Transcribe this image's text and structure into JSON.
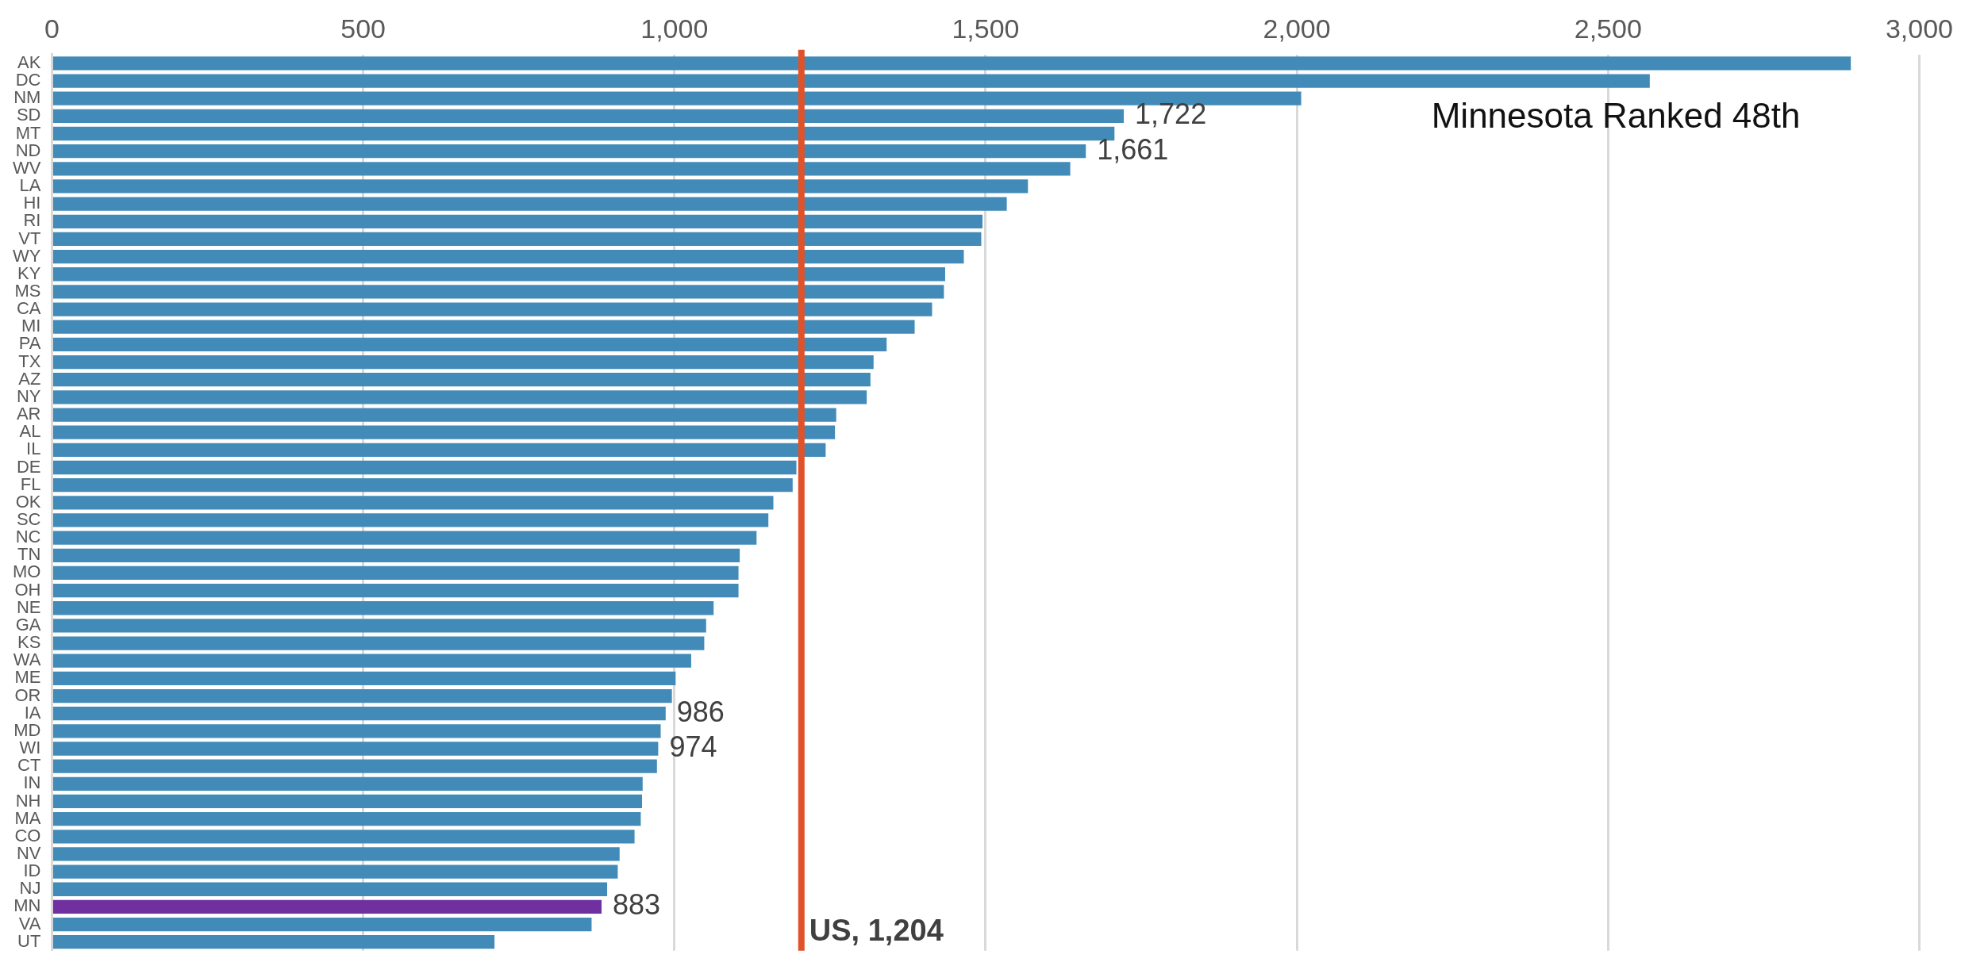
{
  "chart_data": {
    "type": "bar",
    "orientation": "horizontal",
    "categories": [
      "AK",
      "DC",
      "NM",
      "SD",
      "MT",
      "ND",
      "WV",
      "LA",
      "HI",
      "RI",
      "VT",
      "WY",
      "KY",
      "MS",
      "CA",
      "MI",
      "PA",
      "TX",
      "AZ",
      "NY",
      "AR",
      "AL",
      "IL",
      "DE",
      "FL",
      "OK",
      "SC",
      "NC",
      "TN",
      "MO",
      "OH",
      "NE",
      "GA",
      "KS",
      "WA",
      "ME",
      "OR",
      "IA",
      "MD",
      "WI",
      "CT",
      "IN",
      "NH",
      "MA",
      "CO",
      "NV",
      "ID",
      "NJ",
      "MN",
      "VA",
      "UT"
    ],
    "values": [
      2890,
      2567,
      2007,
      1722,
      1707,
      1661,
      1636,
      1568,
      1534,
      1495,
      1493,
      1465,
      1435,
      1433,
      1414,
      1386,
      1341,
      1320,
      1315,
      1309,
      1260,
      1258,
      1243,
      1196,
      1190,
      1159,
      1151,
      1132,
      1105,
      1103,
      1103,
      1063,
      1051,
      1048,
      1027,
      1002,
      996,
      986,
      978,
      974,
      972,
      949,
      948,
      946,
      936,
      912,
      909,
      892,
      883,
      867,
      711
    ],
    "value_labels": [
      null,
      null,
      null,
      "1,722",
      null,
      "1,661",
      null,
      null,
      null,
      null,
      null,
      null,
      null,
      null,
      null,
      null,
      null,
      null,
      null,
      null,
      null,
      null,
      null,
      null,
      null,
      null,
      null,
      null,
      null,
      null,
      null,
      null,
      null,
      null,
      null,
      null,
      null,
      "986",
      null,
      "974",
      null,
      null,
      null,
      null,
      null,
      null,
      null,
      null,
      "883",
      null,
      null
    ],
    "colors": [
      "#428bb8",
      "#428bb8",
      "#428bb8",
      "#428bb8",
      "#428bb8",
      "#428bb8",
      "#428bb8",
      "#428bb8",
      "#428bb8",
      "#428bb8",
      "#428bb8",
      "#428bb8",
      "#428bb8",
      "#428bb8",
      "#428bb8",
      "#428bb8",
      "#428bb8",
      "#428bb8",
      "#428bb8",
      "#428bb8",
      "#428bb8",
      "#428bb8",
      "#428bb8",
      "#428bb8",
      "#428bb8",
      "#428bb8",
      "#428bb8",
      "#428bb8",
      "#428bb8",
      "#428bb8",
      "#428bb8",
      "#428bb8",
      "#428bb8",
      "#428bb8",
      "#428bb8",
      "#428bb8",
      "#428bb8",
      "#428bb8",
      "#428bb8",
      "#428bb8",
      "#428bb8",
      "#428bb8",
      "#428bb8",
      "#428bb8",
      "#428bb8",
      "#428bb8",
      "#428bb8",
      "#428bb8",
      "#7030a0",
      "#428bb8",
      "#428bb8"
    ],
    "xlim": [
      0,
      3000
    ],
    "xticks": [
      0,
      500,
      {
        "value": 1000,
        "label": "1,000"
      },
      {
        "value": 1500,
        "label": "1,500"
      },
      {
        "value": 2000,
        "label": "2,000"
      },
      {
        "value": 2500,
        "label": "2,500"
      },
      {
        "value": 3000,
        "label": "3,000"
      }
    ],
    "grid": "x",
    "ref_lines": [
      {
        "axis": "x",
        "value": 1204,
        "label": "US, 1,204",
        "color": "#e0522a"
      }
    ],
    "annotations": [
      "Minnesota Ranked 48th"
    ]
  }
}
